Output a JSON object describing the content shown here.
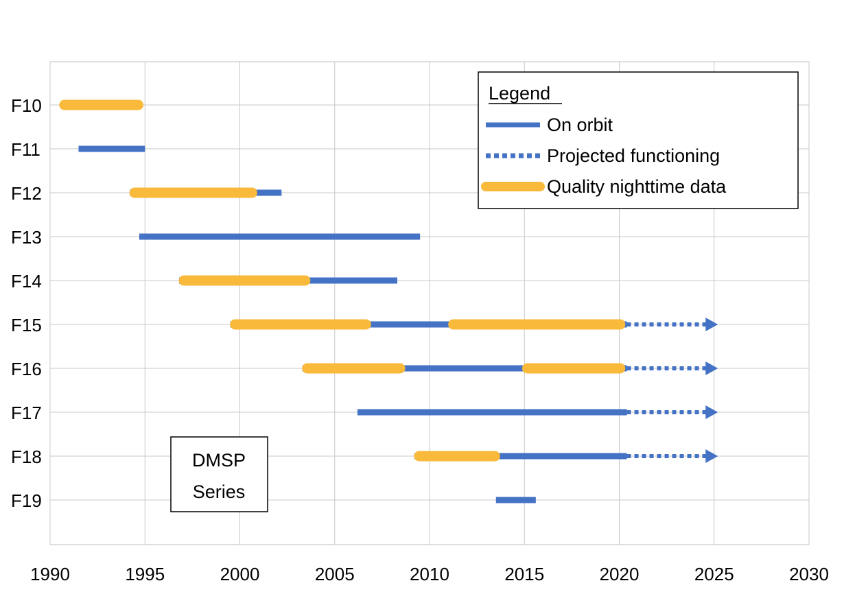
{
  "chart_data": {
    "type": "timeline",
    "xlim": [
      1990,
      2030
    ],
    "x_ticks": [
      "1990",
      "1995",
      "2000",
      "2005",
      "2010",
      "2015",
      "2020",
      "2025",
      "2030"
    ],
    "grid": true,
    "colors": {
      "on_orbit": "#4472C4",
      "projected": "#4472C4",
      "quality": "#F9B93A"
    },
    "legend": {
      "title": "Legend",
      "placement": "top-right",
      "items": [
        {
          "key": "on_orbit",
          "label": "On orbit"
        },
        {
          "key": "projected",
          "label": "Projected functioning"
        },
        {
          "key": "quality",
          "label": "Quality nighttime data"
        }
      ]
    },
    "annotation": {
      "line1": "DMSP",
      "line2": "Series"
    },
    "satellites": [
      {
        "name": "F10",
        "on_orbit": [],
        "quality": [
          [
            1990.5,
            1994.9
          ]
        ],
        "projected": null
      },
      {
        "name": "F11",
        "on_orbit": [
          [
            1991.5,
            1995.0
          ]
        ],
        "quality": [],
        "projected": null
      },
      {
        "name": "F12",
        "on_orbit": [
          [
            1994.2,
            2002.2
          ]
        ],
        "quality": [
          [
            1994.2,
            2000.9
          ]
        ],
        "projected": null
      },
      {
        "name": "F13",
        "on_orbit": [
          [
            1994.7,
            2009.5
          ]
        ],
        "quality": [],
        "projected": null
      },
      {
        "name": "F14",
        "on_orbit": [
          [
            1996.8,
            2008.3
          ]
        ],
        "quality": [
          [
            1996.8,
            2003.7
          ]
        ],
        "projected": null
      },
      {
        "name": "F15",
        "on_orbit": [
          [
            1999.5,
            2020.4
          ]
        ],
        "quality": [
          [
            1999.5,
            2006.9
          ],
          [
            2011.0,
            2020.3
          ]
        ],
        "projected": [
          2020.4,
          2025.2
        ]
      },
      {
        "name": "F16",
        "on_orbit": [
          [
            2003.3,
            2020.4
          ]
        ],
        "quality": [
          [
            2003.3,
            2008.7
          ],
          [
            2014.9,
            2020.3
          ]
        ],
        "projected": [
          2020.4,
          2025.2
        ]
      },
      {
        "name": "F17",
        "on_orbit": [
          [
            2006.2,
            2020.4
          ]
        ],
        "quality": [],
        "projected": [
          2020.4,
          2025.2
        ]
      },
      {
        "name": "F18",
        "on_orbit": [
          [
            2009.2,
            2020.4
          ]
        ],
        "quality": [
          [
            2009.2,
            2013.7
          ]
        ],
        "projected": [
          2020.4,
          2025.2
        ]
      },
      {
        "name": "F19",
        "on_orbit": [
          [
            2013.5,
            2015.6
          ]
        ],
        "quality": [],
        "projected": null
      }
    ]
  }
}
